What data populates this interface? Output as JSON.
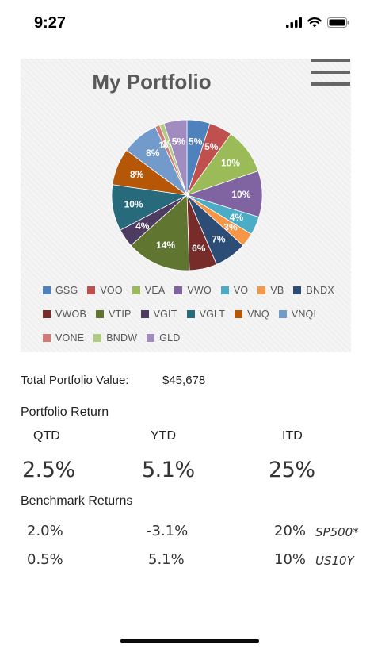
{
  "status_bar": {
    "time": "9:27"
  },
  "chart_data": {
    "type": "pie",
    "title": "My Portfolio",
    "legend_position": "bottom",
    "categories": [
      "GSG",
      "VOO",
      "VEA",
      "VWO",
      "VO",
      "VB",
      "BNDX",
      "VWOB",
      "VTIP",
      "VGIT",
      "VGLT",
      "VNQ",
      "VNQI",
      "VONE",
      "BNDW",
      "GLD"
    ],
    "values": [
      5,
      5,
      10,
      10,
      4,
      3,
      7,
      6,
      14,
      4,
      10,
      8,
      8,
      1,
      1,
      5
    ],
    "labels": [
      "5%",
      "5%",
      "10%",
      "10%",
      "4%",
      "3%",
      "7%",
      "6%",
      "14%",
      "4%",
      "10%",
      "8%",
      "8%",
      "1%",
      "1%",
      "5%"
    ],
    "colors": [
      "#4f81bd",
      "#c0504d",
      "#9bbb59",
      "#8064a2",
      "#4bacc6",
      "#f79646",
      "#2c4d75",
      "#772c2a",
      "#5f7530",
      "#4d3b62",
      "#276a7c",
      "#b65708",
      "#729aca",
      "#d17b79",
      "#b0cc82",
      "#a08cbf"
    ]
  },
  "portfolio": {
    "total_label": "Total Portfolio Value:",
    "total_value": "$45,678",
    "return_heading": "Portfolio Return",
    "periods": [
      "QTD",
      "YTD",
      "ITD"
    ],
    "returns": [
      "2.5%",
      "5.1%",
      "25%"
    ],
    "benchmark_heading": "Benchmark Returns",
    "benchmarks": [
      {
        "values": [
          "2.0%",
          "-3.1%",
          "20%"
        ],
        "name": "SP500*"
      },
      {
        "values": [
          "0.5%",
          "5.1%",
          "10%"
        ],
        "name": "US10Y"
      }
    ]
  }
}
